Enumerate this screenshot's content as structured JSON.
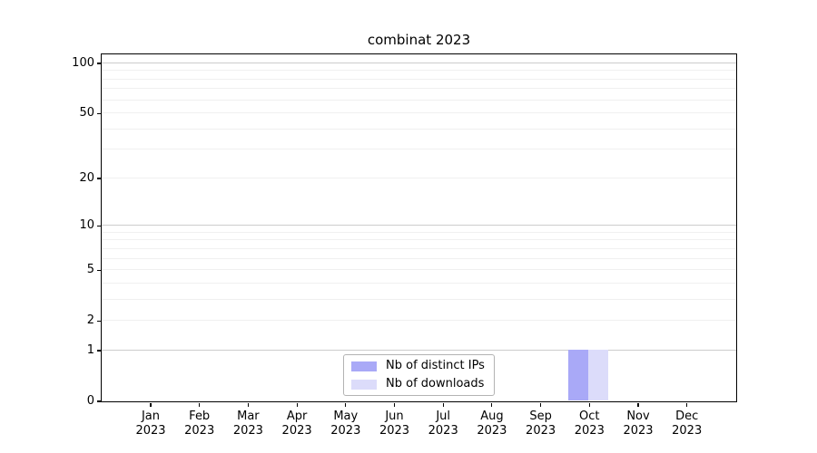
{
  "title": "combinat 2023",
  "legend": {
    "items": [
      {
        "label": "Nb of distinct IPs",
        "color": "#a9a9f7"
      },
      {
        "label": "Nb of downloads",
        "color": "#dcdcfa"
      }
    ]
  },
  "colors": {
    "distinct_ips_bar": "#a9a9f7",
    "downloads_bar": "#dcdcfa",
    "major_gridline": "#cccccc",
    "minor_gridline": "#f0f0f0",
    "axis_spine": "#000000"
  },
  "chart_data": {
    "type": "bar",
    "title": "combinat 2023",
    "x_categories": [
      "Jan",
      "Feb",
      "Mar",
      "Apr",
      "May",
      "Jun",
      "Jul",
      "Aug",
      "Sep",
      "Oct",
      "Nov",
      "Dec"
    ],
    "x_year": "2023",
    "y_scale": "log1p",
    "ylim": [
      0,
      113
    ],
    "y_ticks": [
      0,
      1,
      2,
      5,
      10,
      20,
      50,
      100
    ],
    "y_major_gridlines": [
      1,
      10,
      100
    ],
    "y_minor_gridlines": [
      2,
      3,
      4,
      5,
      6,
      7,
      8,
      9,
      20,
      30,
      40,
      50,
      60,
      70,
      80,
      90
    ],
    "grid": "both",
    "legend_position": "lower center",
    "series": [
      {
        "name": "Nb of distinct IPs",
        "color": "#a9a9f7",
        "values": [
          0,
          0,
          0,
          0,
          0,
          0,
          0,
          0,
          0,
          1,
          0,
          0
        ]
      },
      {
        "name": "Nb of downloads",
        "color": "#dcdcfa",
        "values": [
          0,
          0,
          0,
          0,
          0,
          0,
          0,
          0,
          0,
          1,
          0,
          0
        ]
      }
    ]
  }
}
